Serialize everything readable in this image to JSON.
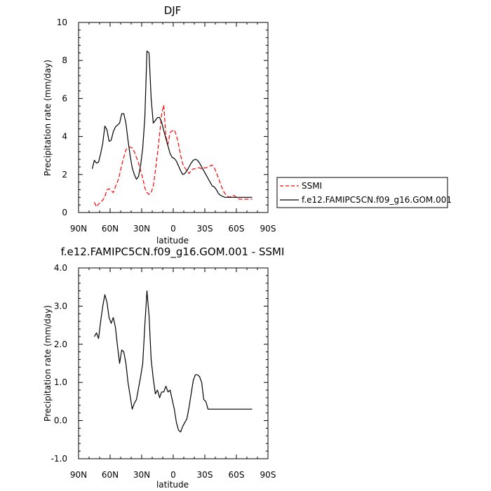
{
  "chart_data": [
    {
      "type": "line",
      "title": "DJF",
      "xlabel": "latitude",
      "ylabel": "Precipitation rate (mm/day)",
      "xlim": [
        90,
        -90
      ],
      "ylim": [
        0,
        10
      ],
      "x_ticks": [
        90,
        60,
        30,
        0,
        -30,
        -60,
        -90
      ],
      "x_tick_labels": [
        "90N",
        "60N",
        "30N",
        "0",
        "30S",
        "60S",
        "90S"
      ],
      "y_ticks": [
        0,
        2,
        4,
        6,
        8,
        10
      ],
      "y_tick_labels": [
        "0",
        "2",
        "4",
        "6",
        "8",
        "10"
      ],
      "legend_position": "right",
      "series": [
        {
          "name": "SSMI",
          "color": "#ff0000",
          "dashed": true,
          "x": [
            75,
            73,
            71,
            69,
            67,
            65,
            63,
            61,
            59,
            57,
            55,
            53,
            51,
            49,
            47,
            45,
            43,
            41,
            39,
            37,
            35,
            33,
            31,
            29,
            27,
            25,
            23,
            21,
            19,
            17,
            15,
            13,
            11,
            9,
            7,
            5,
            3,
            1,
            -1,
            -3,
            -5,
            -7,
            -9,
            -11,
            -13,
            -15,
            -17,
            -19,
            -21,
            -23,
            -25,
            -27,
            -29,
            -31,
            -33,
            -35,
            -37,
            -39,
            -41,
            -43,
            -45,
            -47,
            -49,
            -51,
            -53,
            -55,
            -57,
            -59,
            -61,
            -63,
            -65,
            -67,
            -69,
            -71,
            -73,
            -75
          ],
          "values": [
            0.55,
            0.3,
            0.45,
            0.55,
            0.65,
            0.85,
            1.2,
            1.25,
            1.15,
            1.05,
            1.35,
            1.6,
            2.0,
            2.5,
            2.9,
            3.3,
            3.4,
            3.45,
            3.4,
            3.2,
            2.9,
            2.6,
            2.2,
            1.8,
            1.3,
            1.05,
            0.95,
            1.05,
            1.4,
            2.2,
            3.1,
            4.1,
            5.2,
            5.65,
            4.0,
            3.6,
            4.2,
            4.3,
            4.35,
            4.05,
            3.6,
            3.0,
            2.55,
            2.35,
            2.2,
            2.05,
            2.2,
            2.3,
            2.3,
            2.35,
            2.35,
            2.3,
            2.35,
            2.35,
            2.4,
            2.45,
            2.5,
            2.35,
            2.1,
            1.8,
            1.5,
            1.2,
            1.0,
            0.9,
            0.8,
            0.85,
            0.9,
            0.85,
            0.75,
            0.7,
            0.7,
            0.7,
            0.7,
            0.7,
            0.7,
            0.7
          ]
        },
        {
          "name": "f.e12.FAMIPC5CN.f09_g16.GOM.001",
          "color": "#000000",
          "dashed": false,
          "x": [
            77,
            75,
            73,
            71,
            69,
            67,
            65,
            63,
            61,
            59,
            57,
            55,
            53,
            51,
            49,
            47,
            45,
            43,
            41,
            39,
            37,
            35,
            33,
            31,
            29,
            27,
            25,
            23,
            21,
            19,
            17,
            15,
            13,
            11,
            9,
            7,
            5,
            3,
            1,
            -1,
            -3,
            -5,
            -7,
            -9,
            -11,
            -13,
            -15,
            -17,
            -19,
            -21,
            -23,
            -25,
            -27,
            -29,
            -31,
            -33,
            -35,
            -37,
            -39,
            -41,
            -43,
            -45,
            -47,
            -49,
            -51,
            -53,
            -55,
            -57,
            -59,
            -61,
            -63,
            -65,
            -67,
            -69,
            -71,
            -73,
            -75
          ],
          "values": [
            2.3,
            2.75,
            2.6,
            2.65,
            3.1,
            3.65,
            4.55,
            4.35,
            3.75,
            3.8,
            4.25,
            4.5,
            4.6,
            4.7,
            5.2,
            5.2,
            4.7,
            3.8,
            3.0,
            2.35,
            2.0,
            1.75,
            1.9,
            2.5,
            3.4,
            5.0,
            8.5,
            8.4,
            6.0,
            4.7,
            4.85,
            5.0,
            5.0,
            4.75,
            4.3,
            3.9,
            3.5,
            3.1,
            2.9,
            2.85,
            2.7,
            2.45,
            2.2,
            2.0,
            2.05,
            2.2,
            2.4,
            2.6,
            2.75,
            2.8,
            2.75,
            2.6,
            2.4,
            2.2,
            2.0,
            1.8,
            1.6,
            1.4,
            1.35,
            1.2,
            1.0,
            0.9,
            0.85,
            0.8,
            0.8,
            0.8,
            0.8,
            0.8,
            0.8,
            0.8,
            0.8,
            0.8,
            0.8,
            0.8,
            0.8,
            0.8,
            0.8
          ]
        }
      ]
    },
    {
      "type": "line",
      "title": "f.e12.FAMIPC5CN.f09_g16.GOM.001 - SSMI",
      "xlabel": "latitude",
      "ylabel": "Precipitation rate (mm/day)",
      "xlim": [
        90,
        -90
      ],
      "ylim": [
        -1.0,
        4.0
      ],
      "x_ticks": [
        90,
        60,
        30,
        0,
        -30,
        -60,
        -90
      ],
      "x_tick_labels": [
        "90N",
        "60N",
        "30N",
        "0",
        "30S",
        "60S",
        "90S"
      ],
      "y_ticks": [
        -1.0,
        0.0,
        1.0,
        2.0,
        3.0,
        4.0
      ],
      "y_tick_labels": [
        "-1.0",
        "0.0",
        "1.0",
        "2.0",
        "3.0",
        "4.0"
      ],
      "series": [
        {
          "name": "f.e12.FAMIPC5CN.f09_g16.GOM.001 - SSMI",
          "color": "#000000",
          "dashed": false,
          "x": [
            75,
            73,
            71,
            69,
            67,
            65,
            63,
            61,
            59,
            57,
            55,
            53,
            51,
            49,
            47,
            45,
            43,
            41,
            39,
            37,
            35,
            33,
            31,
            29,
            27,
            25,
            23,
            21,
            19,
            17,
            15,
            13,
            11,
            9,
            7,
            5,
            3,
            1,
            -1,
            -3,
            -5,
            -7,
            -9,
            -11,
            -13,
            -15,
            -17,
            -19,
            -21,
            -23,
            -25,
            -27,
            -29,
            -31,
            -33,
            -35,
            -37,
            -39,
            -41,
            -43,
            -45,
            -47,
            -49,
            -51,
            -53,
            -55,
            -57,
            -59,
            -61,
            -63,
            -65,
            -67,
            -69,
            -71,
            -73,
            -75
          ],
          "values": [
            2.2,
            2.3,
            2.15,
            2.6,
            3.0,
            3.3,
            3.1,
            2.7,
            2.55,
            2.7,
            2.45,
            1.95,
            1.5,
            1.85,
            1.8,
            1.5,
            1.0,
            0.65,
            0.3,
            0.45,
            0.55,
            0.85,
            1.15,
            1.5,
            2.5,
            3.4,
            2.75,
            1.6,
            1.1,
            0.7,
            0.8,
            0.6,
            0.75,
            0.75,
            0.9,
            0.75,
            0.8,
            0.55,
            0.3,
            -0.05,
            -0.25,
            -0.3,
            -0.15,
            -0.05,
            0.05,
            0.35,
            0.7,
            1.05,
            1.2,
            1.2,
            1.15,
            1.0,
            0.55,
            0.5,
            0.3,
            0.3,
            0.3,
            0.3,
            0.3,
            0.3,
            0.3,
            0.3,
            0.3,
            0.3,
            0.3,
            0.3,
            0.3,
            0.3,
            0.3,
            0.3,
            0.3,
            0.3,
            0.3,
            0.3,
            0.3,
            0.3
          ]
        }
      ]
    }
  ]
}
